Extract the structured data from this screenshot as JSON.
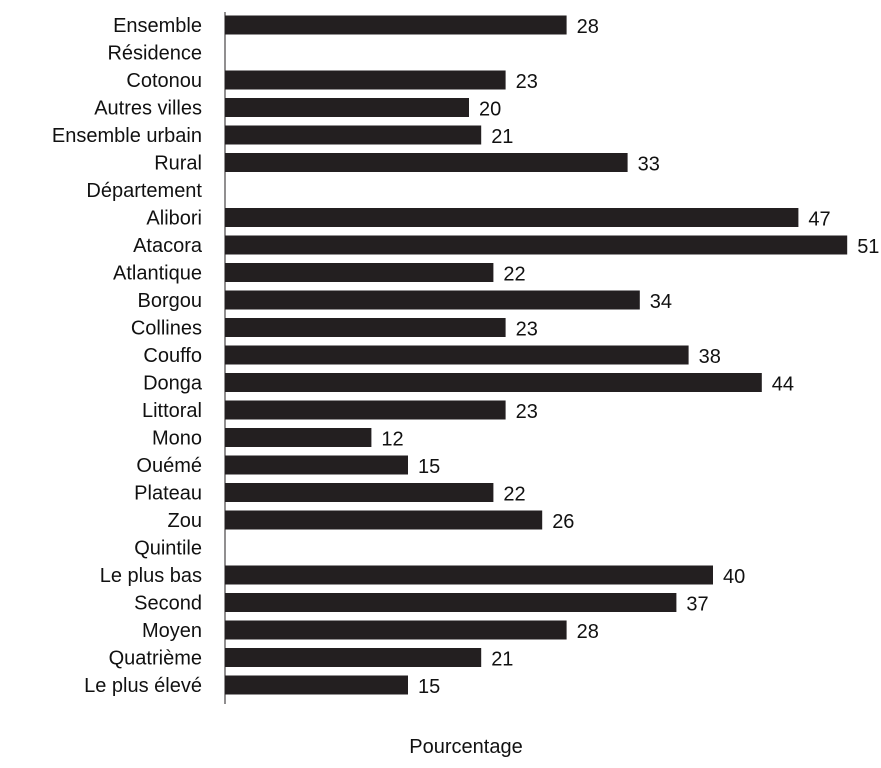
{
  "chart_data": {
    "type": "bar",
    "orientation": "horizontal",
    "xlabel": "Pourcentage",
    "ylabel": "",
    "xlim": [
      0,
      51
    ],
    "grid": false,
    "legend": "none",
    "bar_color": "#231f20",
    "categories": [
      "Ensemble",
      "Résidence",
      "Cotonou",
      "Autres villes",
      "Ensemble urbain",
      "Rural",
      "Département",
      "Alibori",
      "Atacora",
      "Atlantique",
      "Borgou",
      "Collines",
      "Couffo",
      "Donga",
      "Littoral",
      "Mono",
      "Ouémé",
      "Plateau",
      "Zou",
      "Quintile",
      "Le plus bas",
      "Second",
      "Moyen",
      "Quatrième",
      "Le plus élevé"
    ],
    "values": [
      28,
      null,
      23,
      20,
      21,
      33,
      null,
      47,
      51,
      22,
      34,
      23,
      38,
      44,
      23,
      12,
      15,
      22,
      26,
      null,
      40,
      37,
      28,
      21,
      15
    ],
    "data_labels": [
      "28",
      "",
      "23",
      "20",
      "21",
      "33",
      "",
      "47",
      "51",
      "22",
      "34",
      "23",
      "38",
      "44",
      "23",
      "12",
      "15",
      "22",
      "26",
      "",
      "40",
      "37",
      "28",
      "21",
      "15"
    ]
  }
}
